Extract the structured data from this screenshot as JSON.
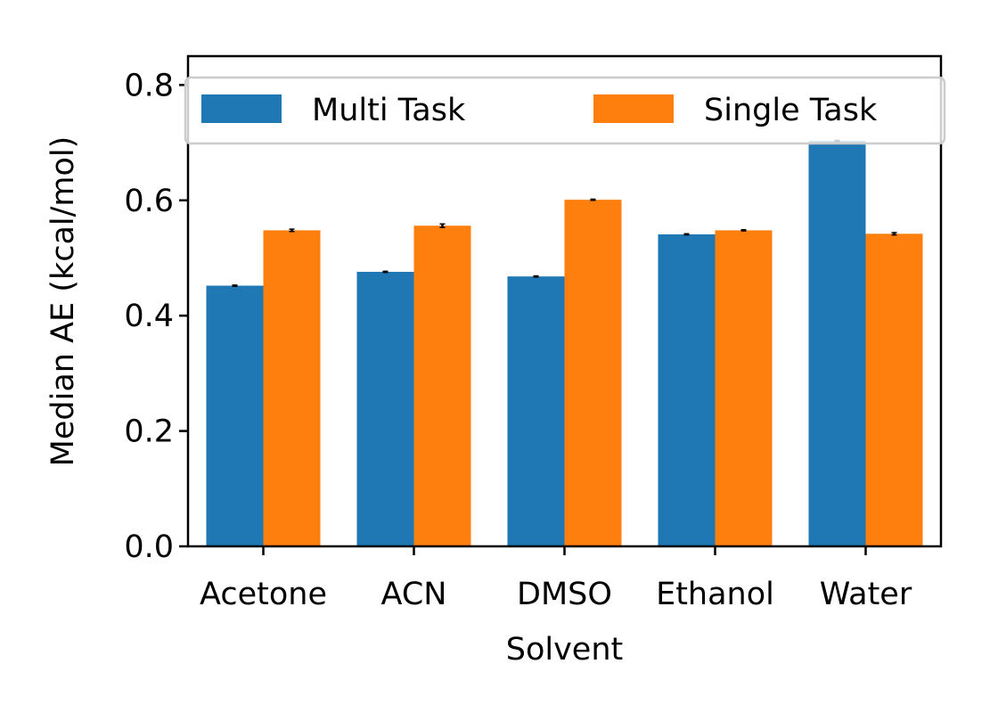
{
  "chart_data": {
    "type": "bar",
    "categories": [
      "Acetone",
      "ACN",
      "DMSO",
      "Ethanol",
      "Water"
    ],
    "series": [
      {
        "name": "Multi Task",
        "color": "#1f77b4",
        "values": [
          0.452,
          0.476,
          0.468,
          0.541,
          0.703
        ],
        "errors": [
          0.001,
          0.001,
          0.001,
          0.001,
          0.001
        ]
      },
      {
        "name": "Single Task",
        "color": "#ff7f0e",
        "values": [
          0.548,
          0.556,
          0.601,
          0.548,
          0.542
        ],
        "errors": [
          0.002,
          0.003,
          0.001,
          0.001,
          0.002
        ]
      }
    ],
    "xlabel": "Solvent",
    "ylabel": "Median AE (kcal/mol)",
    "ylim": [
      0,
      0.85
    ],
    "yticks": [
      0.0,
      0.2,
      0.4,
      0.6,
      0.8
    ],
    "ytick_labels": [
      "0.0",
      "0.2",
      "0.4",
      "0.6",
      "0.8"
    ],
    "grid": false,
    "legend_position": "top"
  }
}
